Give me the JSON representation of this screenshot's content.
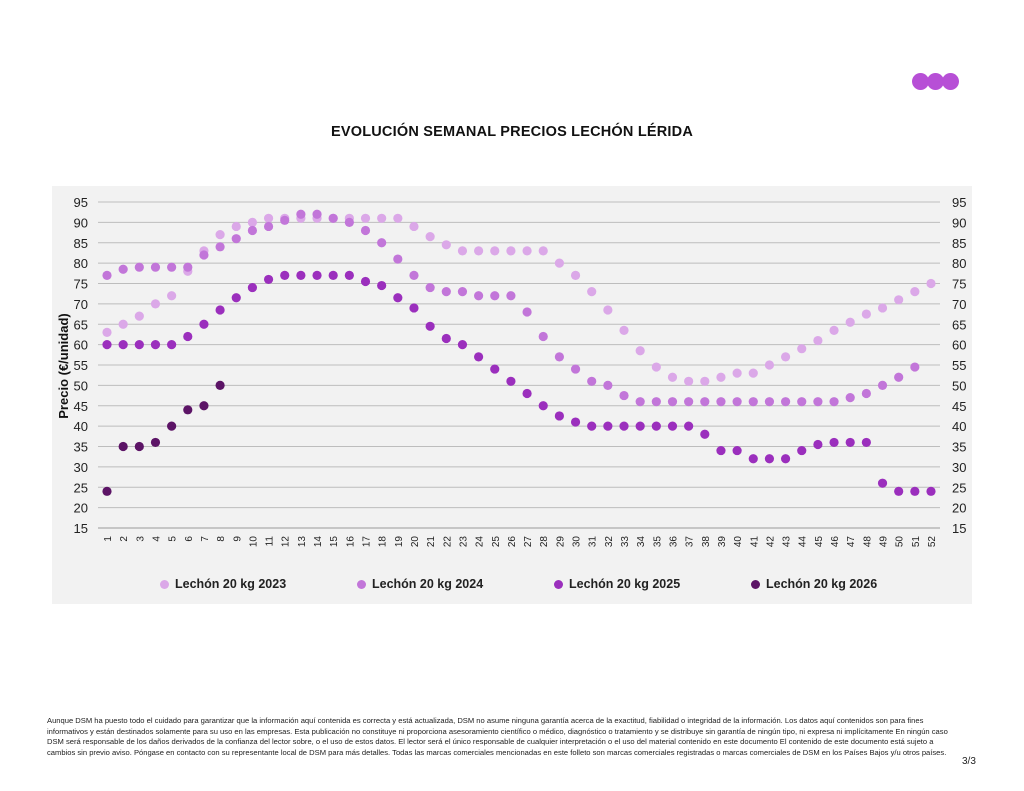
{
  "logo": {
    "icon": "three-dots-logo-icon",
    "color": "#b74fd6"
  },
  "title": "EVOLUCIÓN SEMANAL PRECIOS LECHÓN LÉRIDA",
  "chart_data": {
    "type": "scatter",
    "title": "EVOLUCIÓN SEMANAL PRECIOS LECHÓN LÉRIDA",
    "xlabel": "",
    "ylabel": "Precio (€/unidad)",
    "ylim": [
      15,
      95
    ],
    "yticks": [
      15,
      20,
      25,
      30,
      35,
      40,
      45,
      50,
      55,
      60,
      65,
      70,
      75,
      80,
      85,
      90,
      95
    ],
    "x": [
      1,
      2,
      3,
      4,
      5,
      6,
      7,
      8,
      9,
      10,
      11,
      12,
      13,
      14,
      15,
      16,
      17,
      18,
      19,
      20,
      21,
      22,
      23,
      24,
      25,
      26,
      27,
      28,
      29,
      30,
      31,
      32,
      33,
      34,
      35,
      36,
      37,
      38,
      39,
      40,
      41,
      42,
      43,
      44,
      45,
      46,
      47,
      48,
      49,
      50,
      51,
      52
    ],
    "grid": true,
    "secondary_y_axis": true,
    "legend_position": "bottom",
    "series": [
      {
        "name": "Lechón 20 kg 2023",
        "color": "#dba8e8",
        "values": [
          63,
          65,
          67,
          70,
          72,
          78,
          83,
          87,
          89,
          90,
          91,
          91,
          91,
          91,
          91,
          91,
          91,
          91,
          91,
          89,
          86.5,
          84.5,
          83,
          83,
          83,
          83,
          83,
          83,
          80,
          77,
          73,
          68.5,
          63.5,
          58.5,
          54.5,
          52,
          51,
          51,
          52,
          53,
          53,
          55,
          57,
          59,
          61,
          63.5,
          65.5,
          67.5,
          69,
          71,
          73,
          75
        ]
      },
      {
        "name": "Lechón 20 kg 2024",
        "color": "#c276d9",
        "values": [
          77,
          78.5,
          79,
          79,
          79,
          79,
          82,
          84,
          86,
          88,
          89,
          90.5,
          92,
          92,
          91,
          90,
          88,
          85,
          81,
          77,
          74,
          73,
          73,
          72,
          72,
          72,
          68,
          62,
          57,
          54,
          51,
          50,
          47.5,
          46,
          46,
          46,
          46,
          46,
          46,
          46,
          46,
          46,
          46,
          46,
          46,
          46,
          47,
          48,
          50,
          52,
          54.5,
          null
        ]
      },
      {
        "name": "Lechón 20 kg 2025",
        "color": "#9b2fbd",
        "values": [
          60,
          60,
          60,
          60,
          60,
          62,
          65,
          68.5,
          71.5,
          74,
          76,
          77,
          77,
          77,
          77,
          77,
          75.5,
          74.5,
          71.5,
          69,
          64.5,
          61.5,
          60,
          57,
          54,
          51,
          48,
          45,
          42.5,
          41,
          40,
          40,
          40,
          40,
          40,
          40,
          40,
          38,
          34,
          34,
          32,
          32,
          32,
          34,
          35.5,
          36,
          36,
          36,
          26,
          24,
          24,
          24
        ]
      },
      {
        "name": "Lechón 20 kg 2026",
        "color": "#5c1466",
        "values": [
          24,
          35,
          35,
          36,
          40,
          44,
          45,
          50,
          null,
          null,
          null,
          null,
          null,
          null,
          null,
          null,
          null,
          null,
          null,
          null,
          null,
          null,
          null,
          null,
          null,
          null,
          null,
          null,
          null,
          null,
          null,
          null,
          null,
          null,
          null,
          null,
          null,
          null,
          null,
          null,
          null,
          null,
          null,
          null,
          null,
          null,
          null,
          null,
          null,
          null,
          null,
          null
        ]
      }
    ]
  },
  "footer": {
    "disclaimer": "Aunque DSM ha puesto todo el cuidado para garantizar que la información aquí contenida es correcta y está actualizada, DSM no asume ninguna garantía acerca de la exactitud, fiabilidad o integridad de la información. Los datos aquí contenidos son para fines informativos y están destinados solamente para su uso en las empresas. Esta publicación no constituye ni proporciona asesoramiento científico o médico, diagnóstico o tratamiento y se distribuye sin garantía de ningún tipo, ni expresa ni implícitamente En ningún caso DSM será responsable de los daños derivados de la confianza del lector sobre, o el uso de estos datos. El lector será el único responsable de cualquier interpretación o el uso del material contenido en este documento El contenido de este documento está sujeto a cambios sin previo aviso. Póngase en contacto con su representante local de DSM para más detalles. Todas las marcas comerciales mencionadas en este folleto son marcas comerciales registradas o marcas comerciales de DSM en los Países Bajos y/u otros países.",
    "page_number": "3/3"
  }
}
